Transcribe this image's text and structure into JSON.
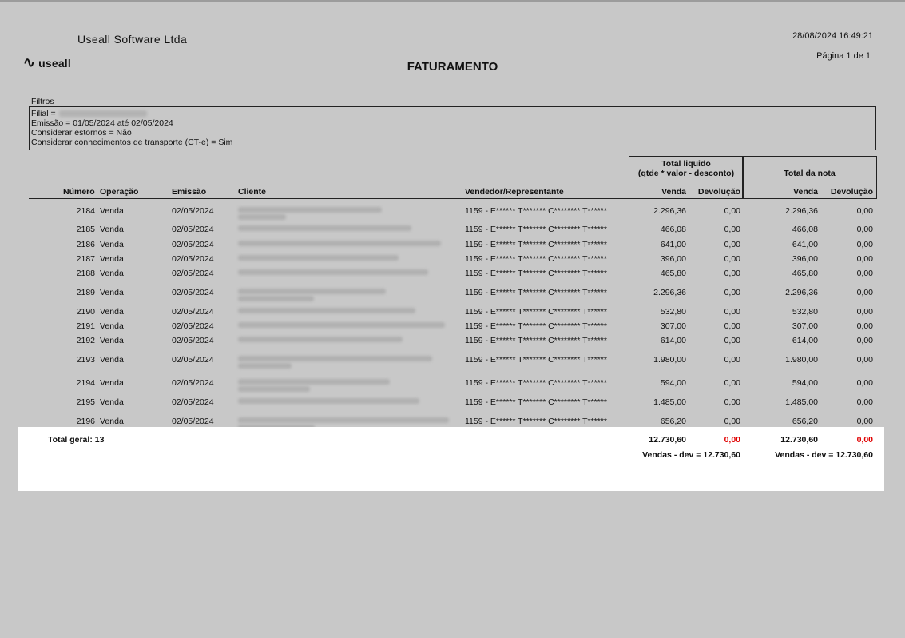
{
  "header": {
    "company": "Useall Software Ltda",
    "logo_text": "useall",
    "datetime": "28/08/2024 16:49:21",
    "page": "Página 1 de 1",
    "title": "FATURAMENTO"
  },
  "filters": {
    "label": "Filtros",
    "lines": [
      "Filial =",
      "Emissão = 01/05/2024 até 02/05/2024",
      "Considerar estornos = Não",
      "Considerar conhecimentos de transporte (CT-e) = Sim"
    ]
  },
  "groups": {
    "g1_line1": "Total liquido",
    "g1_line2": "(qtde * valor - desconto)",
    "g2": "Total da nota"
  },
  "columns": {
    "numero": "Número",
    "operacao": "Operação",
    "emissao": "Emissão",
    "cliente": "Cliente",
    "vendedor": "Vendedor/Representante",
    "venda": "Venda",
    "devolucao": "Devolução"
  },
  "rows": [
    {
      "num": "2184",
      "op": "Venda",
      "em": "02/05/2024",
      "vend": "1159 - E****** T******* C******** T******",
      "v1": "2.296,36",
      "d1": "0,00",
      "v2": "2.296,36",
      "d2": "0,00",
      "tall": true
    },
    {
      "num": "2185",
      "op": "Venda",
      "em": "02/05/2024",
      "vend": "1159 - E****** T******* C******** T******",
      "v1": "466,08",
      "d1": "0,00",
      "v2": "466,08",
      "d2": "0,00",
      "tall": false
    },
    {
      "num": "2186",
      "op": "Venda",
      "em": "02/05/2024",
      "vend": "1159 - E****** T******* C******** T******",
      "v1": "641,00",
      "d1": "0,00",
      "v2": "641,00",
      "d2": "0,00",
      "tall": false
    },
    {
      "num": "2187",
      "op": "Venda",
      "em": "02/05/2024",
      "vend": "1159 - E****** T******* C******** T******",
      "v1": "396,00",
      "d1": "0,00",
      "v2": "396,00",
      "d2": "0,00",
      "tall": false
    },
    {
      "num": "2188",
      "op": "Venda",
      "em": "02/05/2024",
      "vend": "1159 - E****** T******* C******** T******",
      "v1": "465,80",
      "d1": "0,00",
      "v2": "465,80",
      "d2": "0,00",
      "tall": false
    },
    {
      "num": "2189",
      "op": "Venda",
      "em": "02/05/2024",
      "vend": "1159 - E****** T******* C******** T******",
      "v1": "2.296,36",
      "d1": "0,00",
      "v2": "2.296,36",
      "d2": "0,00",
      "tall": true
    },
    {
      "num": "2190",
      "op": "Venda",
      "em": "02/05/2024",
      "vend": "1159 - E****** T******* C******** T******",
      "v1": "532,80",
      "d1": "0,00",
      "v2": "532,80",
      "d2": "0,00",
      "tall": false
    },
    {
      "num": "2191",
      "op": "Venda",
      "em": "02/05/2024",
      "vend": "1159 - E****** T******* C******** T******",
      "v1": "307,00",
      "d1": "0,00",
      "v2": "307,00",
      "d2": "0,00",
      "tall": false
    },
    {
      "num": "2192",
      "op": "Venda",
      "em": "02/05/2024",
      "vend": "1159 - E****** T******* C******** T******",
      "v1": "614,00",
      "d1": "0,00",
      "v2": "614,00",
      "d2": "0,00",
      "tall": false
    },
    {
      "num": "2193",
      "op": "Venda",
      "em": "02/05/2024",
      "vend": "1159 - E****** T******* C******** T******",
      "v1": "1.980,00",
      "d1": "0,00",
      "v2": "1.980,00",
      "d2": "0,00",
      "tall": true
    },
    {
      "num": "2194",
      "op": "Venda",
      "em": "02/05/2024",
      "vend": "1159 - E****** T******* C******** T******",
      "v1": "594,00",
      "d1": "0,00",
      "v2": "594,00",
      "d2": "0,00",
      "tall": true
    },
    {
      "num": "2195",
      "op": "Venda",
      "em": "02/05/2024",
      "vend": "1159 - E****** T******* C******** T******",
      "v1": "1.485,00",
      "d1": "0,00",
      "v2": "1.485,00",
      "d2": "0,00",
      "tall": false
    },
    {
      "num": "2196",
      "op": "Venda",
      "em": "02/05/2024",
      "vend": "1159 - E****** T******* C******** T******",
      "v1": "656,20",
      "d1": "0,00",
      "v2": "656,20",
      "d2": "0,00",
      "tall": true
    }
  ],
  "totals": {
    "label": "Total geral: 13",
    "v1": "12.730,60",
    "d1": "0,00",
    "v2": "12.730,60",
    "d2": "0,00",
    "net1": "Vendas - dev = 12.730,60",
    "net2": "Vendas - dev = 12.730,60"
  },
  "colors": {
    "background": "#c8c8c8",
    "devolucao_total": "#e00000"
  }
}
